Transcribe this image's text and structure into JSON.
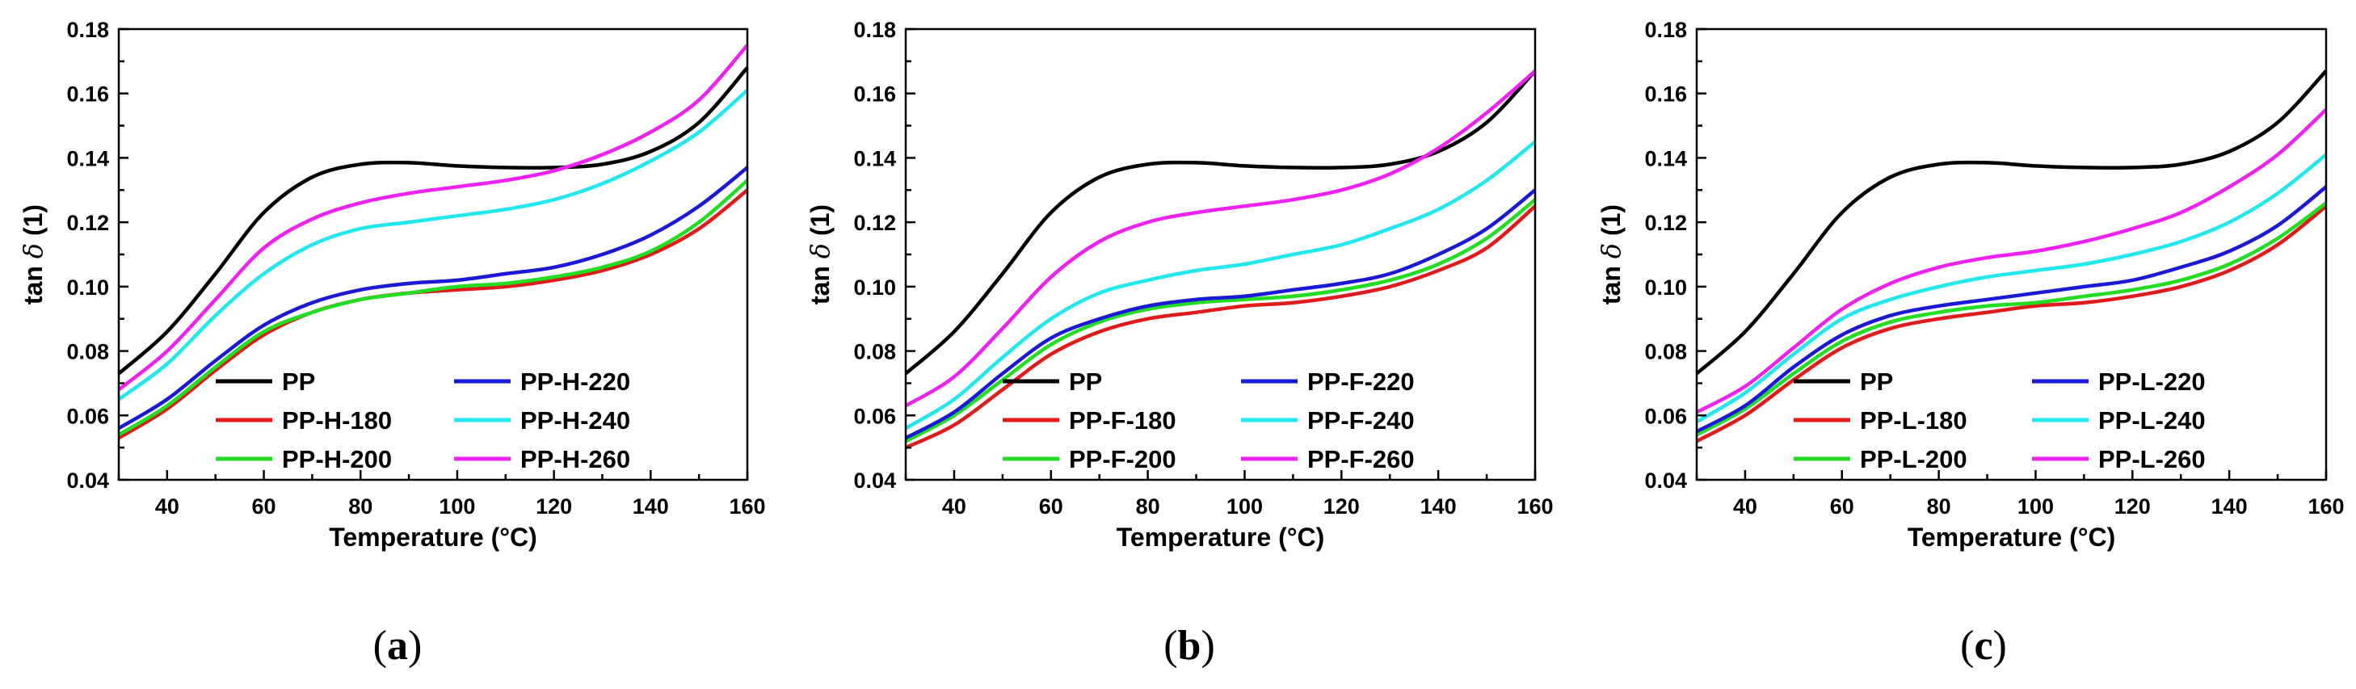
{
  "chart_data": [
    {
      "type": "line",
      "panel_label": "a",
      "xlabel": "Temperature (°C)",
      "ylabel_prefix": "tan ",
      "ylabel_symbol": "δ",
      "ylabel_suffix": " (1)",
      "xlim": [
        30,
        160
      ],
      "ylim": [
        0.04,
        0.18
      ],
      "xticks": [
        40,
        60,
        80,
        100,
        120,
        140,
        160
      ],
      "yticks": [
        "0.04",
        "0.06",
        "0.08",
        "0.10",
        "0.12",
        "0.14",
        "0.16",
        "0.18"
      ],
      "x": [
        30,
        40,
        50,
        60,
        70,
        80,
        90,
        100,
        110,
        120,
        130,
        140,
        150,
        160
      ],
      "series": [
        {
          "name": "PP",
          "color": "#000000",
          "values": [
            0.073,
            0.086,
            0.104,
            0.123,
            0.134,
            0.138,
            0.1385,
            0.1375,
            0.137,
            0.137,
            0.138,
            0.142,
            0.151,
            0.168
          ]
        },
        {
          "name": "PP-H-180",
          "color": "#e01b1b",
          "values": [
            0.053,
            0.062,
            0.074,
            0.085,
            0.092,
            0.096,
            0.098,
            0.099,
            0.1,
            0.102,
            0.105,
            0.11,
            0.118,
            0.13
          ]
        },
        {
          "name": "PP-H-200",
          "color": "#22dd22",
          "values": [
            0.054,
            0.063,
            0.075,
            0.086,
            0.092,
            0.096,
            0.098,
            0.1,
            0.101,
            0.103,
            0.106,
            0.111,
            0.12,
            0.133
          ]
        },
        {
          "name": "PP-H-220",
          "color": "#1a1ad6",
          "values": [
            0.056,
            0.065,
            0.077,
            0.088,
            0.095,
            0.099,
            0.101,
            0.102,
            0.104,
            0.106,
            0.11,
            0.116,
            0.125,
            0.137
          ]
        },
        {
          "name": "PP-H-240",
          "color": "#22e8ee",
          "values": [
            0.065,
            0.076,
            0.091,
            0.104,
            0.113,
            0.118,
            0.12,
            0.122,
            0.124,
            0.127,
            0.132,
            0.139,
            0.148,
            0.161
          ]
        },
        {
          "name": "PP-H-260",
          "color": "#ee22ee",
          "values": [
            0.068,
            0.08,
            0.096,
            0.112,
            0.121,
            0.126,
            0.129,
            0.131,
            0.133,
            0.136,
            0.141,
            0.148,
            0.158,
            0.175
          ]
        }
      ]
    },
    {
      "type": "line",
      "panel_label": "b",
      "xlabel": "Temperature (°C)",
      "ylabel_prefix": "tan ",
      "ylabel_symbol": "δ",
      "ylabel_suffix": " (1)",
      "xlim": [
        30,
        160
      ],
      "ylim": [
        0.04,
        0.18
      ],
      "xticks": [
        40,
        60,
        80,
        100,
        120,
        140,
        160
      ],
      "yticks": [
        "0.04",
        "0.06",
        "0.08",
        "0.10",
        "0.12",
        "0.14",
        "0.16",
        "0.18"
      ],
      "x": [
        30,
        40,
        50,
        60,
        70,
        80,
        90,
        100,
        110,
        120,
        130,
        140,
        150,
        160
      ],
      "series": [
        {
          "name": "PP",
          "color": "#000000",
          "values": [
            0.073,
            0.086,
            0.104,
            0.123,
            0.134,
            0.138,
            0.1385,
            0.1375,
            0.137,
            0.137,
            0.138,
            0.142,
            0.151,
            0.167
          ]
        },
        {
          "name": "PP-F-180",
          "color": "#e01b1b",
          "values": [
            0.05,
            0.057,
            0.068,
            0.079,
            0.086,
            0.09,
            0.092,
            0.094,
            0.095,
            0.097,
            0.1,
            0.105,
            0.112,
            0.125
          ]
        },
        {
          "name": "PP-F-200",
          "color": "#22dd22",
          "values": [
            0.052,
            0.06,
            0.071,
            0.082,
            0.089,
            0.093,
            0.095,
            0.096,
            0.097,
            0.099,
            0.102,
            0.107,
            0.115,
            0.127
          ]
        },
        {
          "name": "PP-F-220",
          "color": "#1a1ad6",
          "values": [
            0.053,
            0.061,
            0.073,
            0.084,
            0.09,
            0.094,
            0.096,
            0.097,
            0.099,
            0.101,
            0.104,
            0.11,
            0.118,
            0.13
          ]
        },
        {
          "name": "PP-F-240",
          "color": "#22e8ee",
          "values": [
            0.056,
            0.065,
            0.078,
            0.09,
            0.098,
            0.102,
            0.105,
            0.107,
            0.11,
            0.113,
            0.118,
            0.124,
            0.133,
            0.145
          ]
        },
        {
          "name": "PP-F-260",
          "color": "#ee22ee",
          "values": [
            0.063,
            0.072,
            0.087,
            0.103,
            0.114,
            0.12,
            0.123,
            0.125,
            0.127,
            0.13,
            0.135,
            0.143,
            0.154,
            0.167
          ]
        }
      ]
    },
    {
      "type": "line",
      "panel_label": "c",
      "xlabel": "Temperature (°C)",
      "ylabel_prefix": "tan ",
      "ylabel_symbol": "δ",
      "ylabel_suffix": " (1)",
      "xlim": [
        30,
        160
      ],
      "ylim": [
        0.04,
        0.18
      ],
      "xticks": [
        40,
        60,
        80,
        100,
        120,
        140,
        160
      ],
      "yticks": [
        "0.04",
        "0.06",
        "0.08",
        "0.10",
        "0.12",
        "0.14",
        "0.16",
        "0.18"
      ],
      "x": [
        30,
        40,
        50,
        60,
        70,
        80,
        90,
        100,
        110,
        120,
        130,
        140,
        150,
        160
      ],
      "series": [
        {
          "name": "PP",
          "color": "#000000",
          "values": [
            0.073,
            0.086,
            0.104,
            0.123,
            0.134,
            0.138,
            0.1385,
            0.1375,
            0.137,
            0.137,
            0.138,
            0.142,
            0.151,
            0.167
          ]
        },
        {
          "name": "PP-L-180",
          "color": "#e01b1b",
          "values": [
            0.052,
            0.06,
            0.071,
            0.081,
            0.087,
            0.09,
            0.092,
            0.094,
            0.095,
            0.097,
            0.1,
            0.105,
            0.113,
            0.125
          ]
        },
        {
          "name": "PP-L-200",
          "color": "#22dd22",
          "values": [
            0.054,
            0.062,
            0.073,
            0.083,
            0.089,
            0.092,
            0.094,
            0.095,
            0.097,
            0.099,
            0.102,
            0.107,
            0.115,
            0.126
          ]
        },
        {
          "name": "PP-L-220",
          "color": "#1a1ad6",
          "values": [
            0.055,
            0.063,
            0.075,
            0.085,
            0.091,
            0.094,
            0.096,
            0.098,
            0.1,
            0.102,
            0.106,
            0.111,
            0.119,
            0.131
          ]
        },
        {
          "name": "PP-L-240",
          "color": "#22e8ee",
          "values": [
            0.058,
            0.067,
            0.079,
            0.09,
            0.096,
            0.1,
            0.103,
            0.105,
            0.107,
            0.11,
            0.114,
            0.12,
            0.129,
            0.141
          ]
        },
        {
          "name": "PP-L-260",
          "color": "#ee22ee",
          "values": [
            0.061,
            0.069,
            0.081,
            0.093,
            0.101,
            0.106,
            0.109,
            0.111,
            0.114,
            0.118,
            0.123,
            0.131,
            0.141,
            0.155
          ]
        }
      ]
    }
  ]
}
